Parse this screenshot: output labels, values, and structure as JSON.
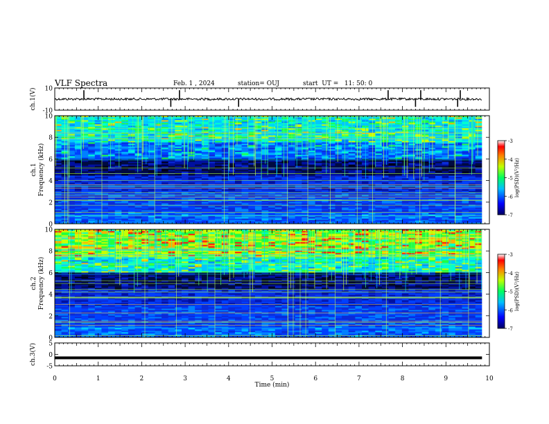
{
  "header": {
    "title": "VLF Spectra",
    "date": "Feb. 1 , 2024",
    "station": "station= OUJ",
    "start_time": "start  UT =   11: 50: 0"
  },
  "chart_data": [
    {
      "type": "line",
      "panel": "ch1-waveform",
      "ylabel": "ch.1(V)",
      "ylim": [
        -10,
        10
      ],
      "y_tick_labels": [
        "10",
        "-10"
      ],
      "series": [
        {
          "values_description_omitted": true,
          "baseline": 0
        }
      ],
      "spikes_x_min": [
        0.67,
        2.67,
        2.87,
        4.23,
        7.67,
        8.3,
        8.42,
        9.27,
        9.33
      ]
    },
    {
      "type": "heatmap",
      "panel": "ch1-spectrogram",
      "ylabel": "ch.1\nFrequency (kHz)",
      "ylabel_lines": [
        "ch.1",
        "Frequency (kHz)"
      ],
      "xlim": [
        0,
        10
      ],
      "ylim": [
        0,
        10
      ],
      "y_tick_labels": [
        "0",
        "2",
        "4",
        "6",
        "8",
        "10"
      ],
      "colorbar": {
        "label": "log(PSD)(V²/Hz)",
        "range": [
          -7,
          -3
        ],
        "tick_labels": [
          "-3",
          "-4",
          "-5",
          "-6",
          "-7"
        ]
      }
    },
    {
      "type": "heatmap",
      "panel": "ch2-spectrogram",
      "ylabel_lines": [
        "ch.2",
        "Frequency (kHz)"
      ],
      "xlim": [
        0,
        10
      ],
      "ylim": [
        0,
        10
      ],
      "y_tick_labels": [
        "0",
        "2",
        "4",
        "6",
        "8",
        "10"
      ],
      "colorbar": {
        "label": "log(PSD)(V²/Hz)",
        "range": [
          -7,
          -3
        ],
        "tick_labels": [
          "-3",
          "-4",
          "-5",
          "-6",
          "-7"
        ]
      }
    },
    {
      "type": "line",
      "panel": "ch3-waveform",
      "ylabel": "ch.3(V)",
      "ylim": [
        -5,
        5
      ],
      "y_tick_labels": [
        "5",
        "0",
        "-5"
      ],
      "series": [
        {
          "constant_value": -1.5
        }
      ]
    }
  ],
  "x_axis": {
    "label": "Time (min)",
    "range": [
      0,
      10
    ],
    "tick_labels": [
      "0",
      "1",
      "2",
      "3",
      "4",
      "5",
      "6",
      "7",
      "8",
      "9",
      "10"
    ],
    "data_end_min": 9.83
  },
  "colors": {
    "background_dark": "#000010",
    "band_blue": "#0a2ad8",
    "mid_cyan": "#00c8ff",
    "high_green": "#20ff40",
    "hot_red": "#ff1010"
  }
}
